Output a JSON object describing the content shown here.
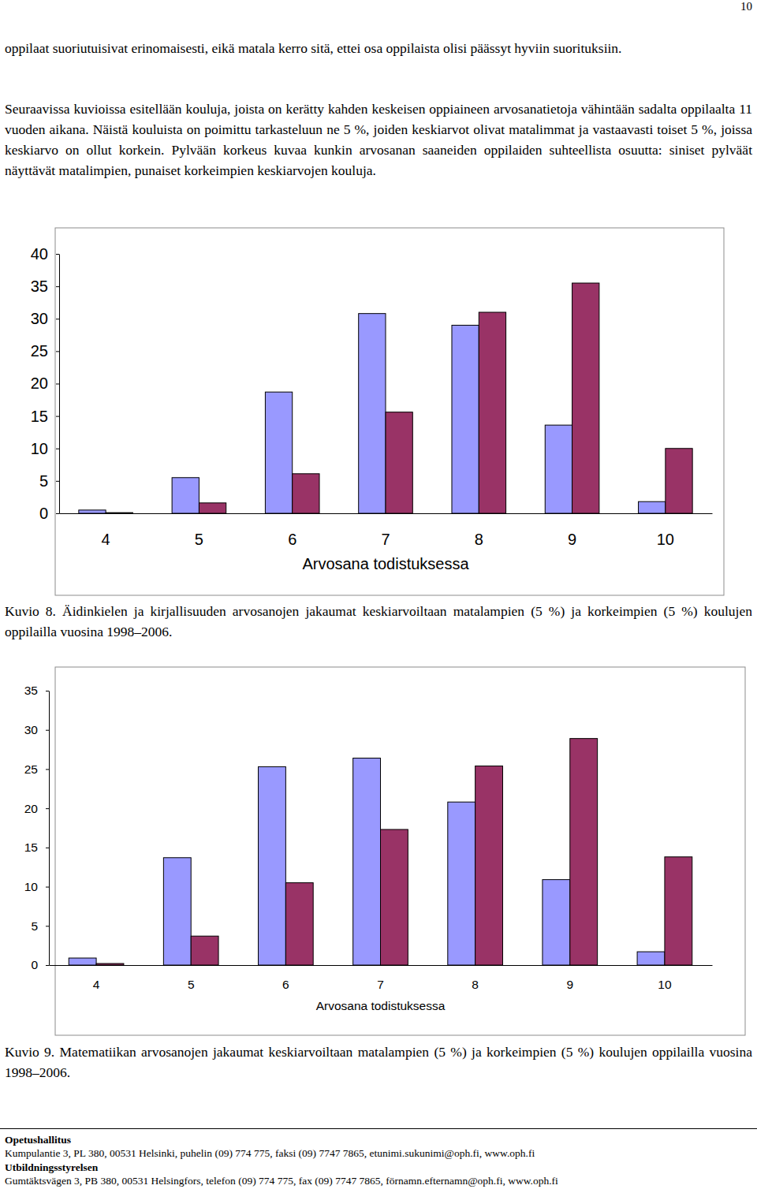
{
  "page_number": "10",
  "paragraphs": [
    "oppilaat suoriutuisivat erinomaisesti, eikä matala kerro sitä, ettei osa oppilaista olisi päässyt hyviin suorituksiin.",
    "Seuraavissa kuvioissa esitellään kouluja, joista on kerätty kahden keskeisen oppiaineen arvosanatietoja vähintään sadalta oppilaalta 11 vuoden aikana. Näistä kouluista on poimittu tarkasteluun ne 5 %, joiden keskiarvot olivat matalimmat ja vastaavasti toiset 5 %, joissa keskiarvo on ollut korkein. Pylvään korkeus kuvaa kunkin arvosanan saaneiden oppilaiden suhteellista osuutta: siniset pylväät näyttävät matalimpien, punaiset korkeimpien keskiarvojen kouluja."
  ],
  "chart_data": [
    {
      "type": "bar",
      "title": "Kuvio 8. Äidinkielen ja kirjallisuuden arvosanojen jakaumat keskiarvoiltaan matalampien (5 %) ja korkeimpien (5 %) koulujen oppilailla vuosina 1998–2006.",
      "xlabel": "Arvosana todistuksessa",
      "categories": [
        "4",
        "5",
        "6",
        "7",
        "8",
        "9",
        "10"
      ],
      "series": [
        {
          "color": "#9999ff",
          "values": [
            0.5,
            5.5,
            18.7,
            30.8,
            29.0,
            13.6,
            1.8
          ]
        },
        {
          "color": "#993366",
          "values": [
            0.1,
            1.6,
            6.1,
            15.6,
            31.0,
            35.5,
            10.0
          ]
        }
      ],
      "ylim": [
        0,
        40
      ],
      "yticks": [
        0,
        5,
        10,
        15,
        20,
        25,
        30,
        35,
        40
      ]
    },
    {
      "type": "bar",
      "title": "Kuvio 9. Matematiikan arvosanojen jakaumat keskiarvoiltaan matalampien (5 %) ja korkeimpien (5 %) koulujen oppilailla vuosina 1998–2006.",
      "xlabel": "Arvosana todistuksessa",
      "categories": [
        "4",
        "5",
        "6",
        "7",
        "8",
        "9",
        "10"
      ],
      "series": [
        {
          "color": "#9999ff",
          "values": [
            0.9,
            13.7,
            25.3,
            26.4,
            20.8,
            10.9,
            1.7
          ]
        },
        {
          "color": "#993366",
          "values": [
            0.2,
            3.7,
            10.5,
            17.3,
            25.4,
            28.9,
            13.8
          ]
        }
      ],
      "ylim": [
        0,
        35
      ],
      "yticks": [
        0,
        5,
        10,
        15,
        20,
        25,
        30,
        35
      ]
    }
  ],
  "footer": [
    {
      "name": "Opetushallitus",
      "address": "Kumpulantie 3, PL 380, 00531 Helsinki, puhelin (09) 774 775, faksi (09) 7747 7865, etunimi.sukunimi@oph.fi, www.oph.fi"
    },
    {
      "name": "Utbildningsstyrelsen",
      "address": "Gumtäktsvägen 3, PB 380, 00531 Helsingfors, telefon (09) 774 775, fax (09) 7747 7865, förnamn.efternamn@oph.fi, www.oph.fi"
    }
  ]
}
